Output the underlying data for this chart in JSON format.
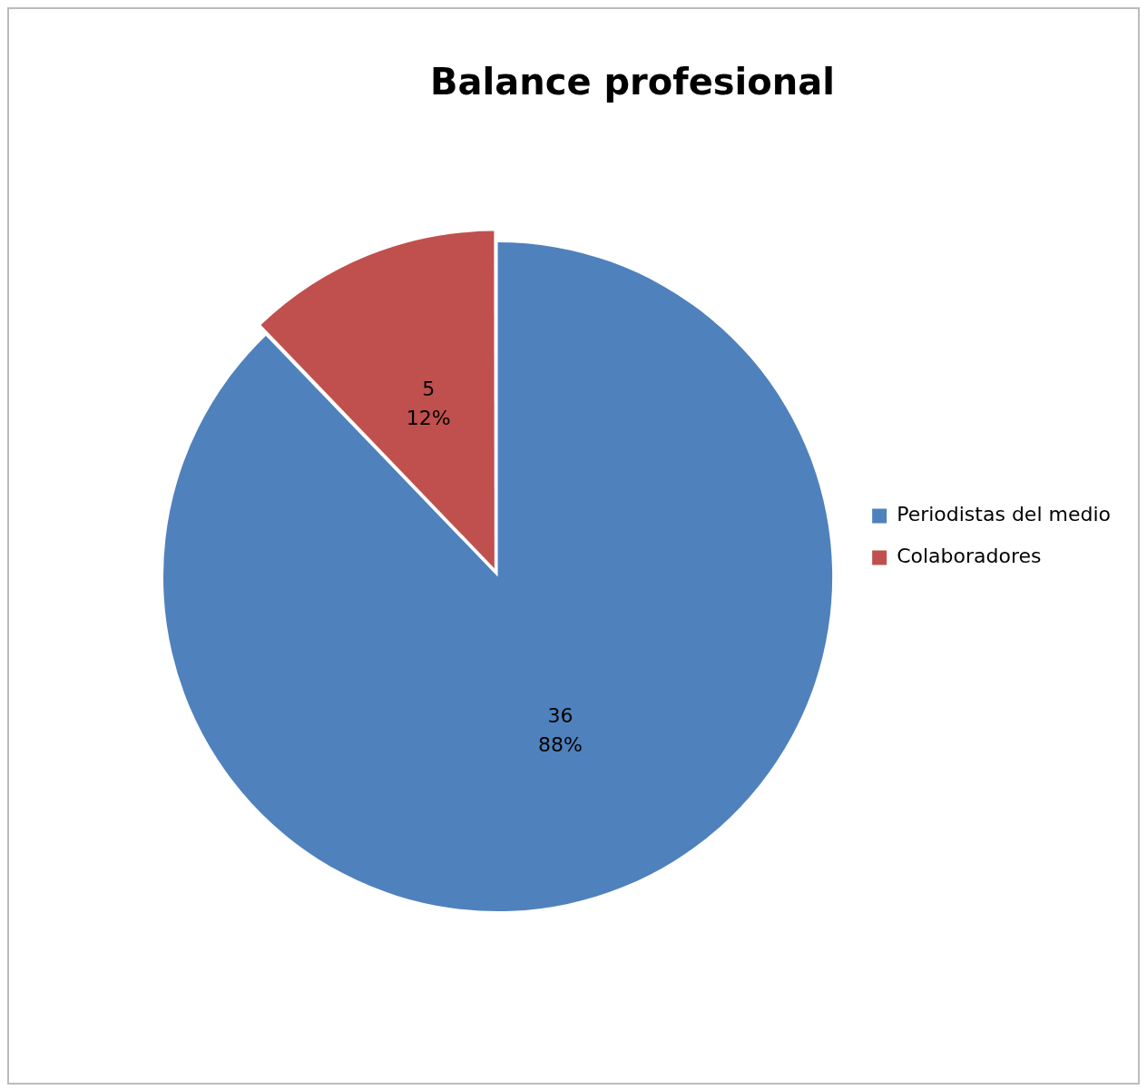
{
  "chart_data": {
    "type": "pie",
    "title": "Balance profesional",
    "categories": [
      "Periodistas del medio",
      "Colaboradores"
    ],
    "values": [
      36,
      5
    ],
    "colors": [
      "#4f81bd",
      "#c0504d"
    ],
    "value_labels": [
      "36\n88%",
      "5\n12%"
    ],
    "legend": "right"
  }
}
